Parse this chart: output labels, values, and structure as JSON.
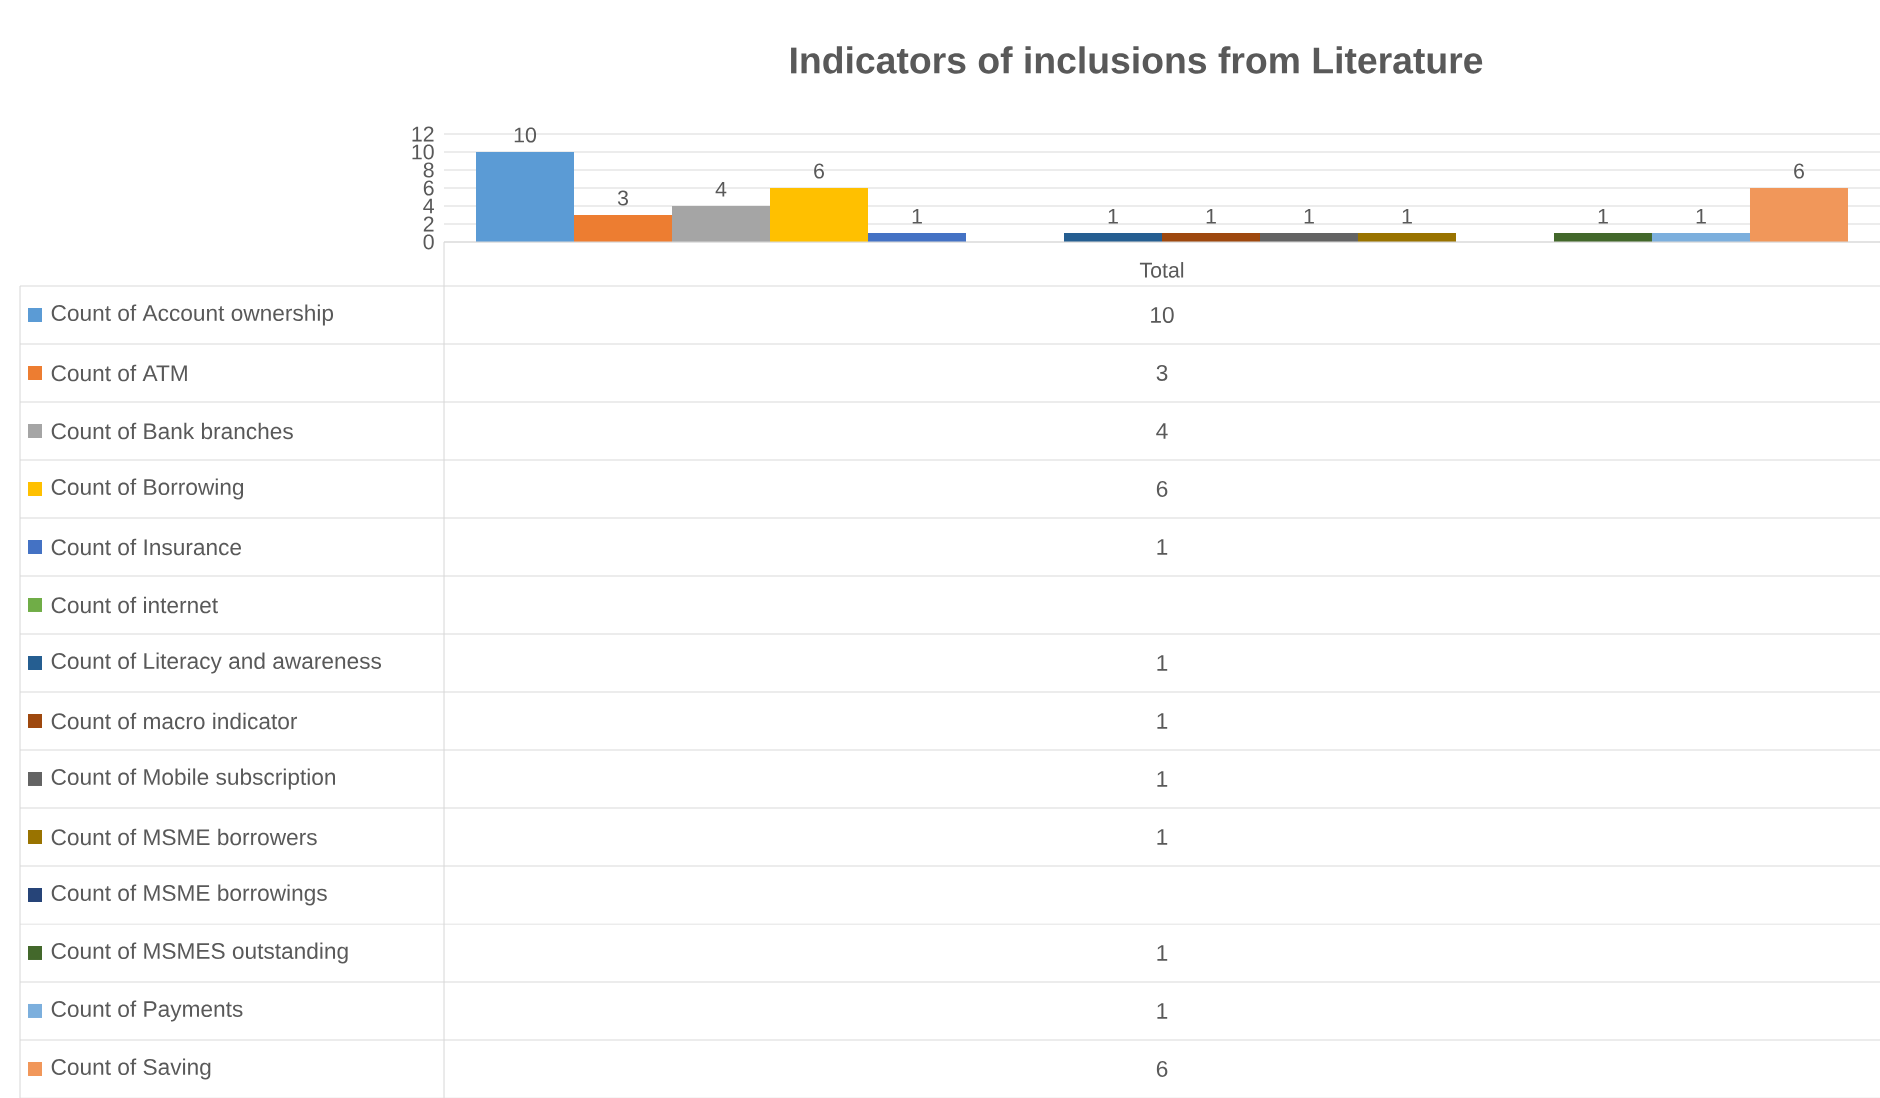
{
  "chart_data": {
    "type": "bar",
    "title": "Indicators of inclusions from Literature",
    "categories": [
      "Total"
    ],
    "series": [
      {
        "name": "Count of Account ownership",
        "color": "#5b9bd5",
        "values": [
          10
        ],
        "value_labels": [
          "10"
        ]
      },
      {
        "name": "Count of ATM",
        "color": "#ed7d31",
        "values": [
          3
        ],
        "value_labels": [
          "3"
        ]
      },
      {
        "name": "Count of Bank branches",
        "color": "#a5a5a5",
        "values": [
          4
        ],
        "value_labels": [
          "4"
        ]
      },
      {
        "name": "Count of Borrowing",
        "color": "#ffc000",
        "values": [
          6
        ],
        "value_labels": [
          "6"
        ]
      },
      {
        "name": "Count of Insurance",
        "color": "#4472c4",
        "values": [
          1
        ],
        "value_labels": [
          "1"
        ]
      },
      {
        "name": "Count of internet",
        "color": "#70ad47",
        "values": [
          null
        ],
        "value_labels": [
          null
        ]
      },
      {
        "name": "Count of Literacy and awareness",
        "color": "#255e91",
        "values": [
          1
        ],
        "value_labels": [
          "1"
        ]
      },
      {
        "name": "Count of macro indicator",
        "color": "#9e480e",
        "values": [
          1
        ],
        "value_labels": [
          "1"
        ]
      },
      {
        "name": "Count of Mobile subscription",
        "color": "#636363",
        "values": [
          1
        ],
        "value_labels": [
          "1"
        ]
      },
      {
        "name": "Count of MSME borrowers",
        "color": "#997300",
        "values": [
          1
        ],
        "value_labels": [
          "1"
        ]
      },
      {
        "name": "Count of MSME borrowings",
        "color": "#264478",
        "values": [
          null
        ],
        "value_labels": [
          null
        ]
      },
      {
        "name": "Count of MSMES outstanding",
        "color": "#43682b",
        "values": [
          1
        ],
        "value_labels": [
          "1"
        ]
      },
      {
        "name": "Count of Payments",
        "color": "#7cafdd",
        "values": [
          1
        ],
        "value_labels": [
          "1"
        ]
      },
      {
        "name": "Count of Saving",
        "color": "#f1975a",
        "values": [
          6
        ],
        "value_labels": [
          "6"
        ]
      }
    ],
    "ylim": [
      0,
      12
    ],
    "yticks": [
      0,
      2,
      4,
      6,
      8,
      10,
      12
    ],
    "grid": "y",
    "legend": "bottom"
  }
}
